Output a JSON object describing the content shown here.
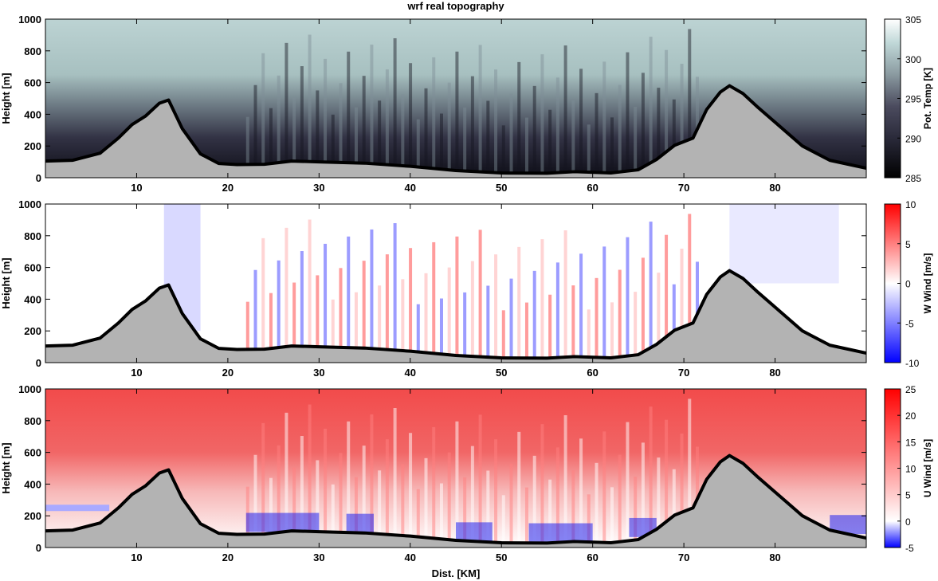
{
  "figure": {
    "title": "wrf real topography"
  },
  "chart_data": [
    {
      "type": "heatmap",
      "field": "potential temperature",
      "title": "wrf real topography",
      "xlabel": "",
      "ylabel": "Height [m]",
      "xlim": [
        0,
        90
      ],
      "ylim": [
        0,
        1000
      ],
      "xticks": [
        10,
        20,
        30,
        40,
        50,
        60,
        70,
        80
      ],
      "yticks": [
        0,
        200,
        400,
        600,
        800,
        1000
      ],
      "colorbar": {
        "label": "Pot. Temp [K]",
        "range": [
          285,
          305
        ],
        "ticks": [
          285,
          290,
          295,
          300,
          305
        ],
        "colormap": "bone",
        "colors": [
          "#000000",
          "#4b4b5e",
          "#8a9aa0",
          "#c0d8d8",
          "#ffffff"
        ]
      }
    },
    {
      "type": "heatmap",
      "field": "vertical wind",
      "xlabel": "",
      "ylabel": "Height [m]",
      "xlim": [
        0,
        90
      ],
      "ylim": [
        0,
        1000
      ],
      "xticks": [
        10,
        20,
        30,
        40,
        50,
        60,
        70,
        80
      ],
      "yticks": [
        0,
        200,
        400,
        600,
        800,
        1000
      ],
      "colorbar": {
        "label": "W Wind [m/s]",
        "range": [
          -10,
          10
        ],
        "ticks": [
          -10,
          -5,
          0,
          5,
          10
        ],
        "colormap": "blue-white-red",
        "colors": [
          "#0000ff",
          "#ffffff",
          "#ff0000"
        ]
      }
    },
    {
      "type": "heatmap",
      "field": "horizontal wind",
      "xlabel": "Dist. [KM]",
      "ylabel": "Height [m]",
      "xlim": [
        0,
        90
      ],
      "ylim": [
        0,
        1000
      ],
      "xticks": [
        10,
        20,
        30,
        40,
        50,
        60,
        70,
        80
      ],
      "yticks": [
        0,
        200,
        400,
        600,
        800,
        1000
      ],
      "colorbar": {
        "label": "U Wind [m/s]",
        "range": [
          -5,
          25
        ],
        "ticks": [
          -5,
          0,
          5,
          10,
          15,
          20,
          25
        ],
        "colormap": "blue-white-red",
        "colors": [
          "#0000ff",
          "#ffffff",
          "#ff0000"
        ]
      }
    }
  ],
  "terrain": {
    "x": [
      0,
      3,
      6,
      8,
      9.5,
      11,
      12.5,
      13.5,
      15,
      17,
      19,
      21,
      24,
      27,
      30,
      35,
      40,
      45,
      50,
      55,
      58,
      62,
      65,
      67,
      69,
      71,
      72.5,
      74,
      75,
      76.5,
      78,
      80,
      83,
      86,
      90
    ],
    "y": [
      105,
      110,
      155,
      250,
      335,
      390,
      470,
      490,
      310,
      150,
      90,
      83,
      85,
      105,
      100,
      92,
      72,
      45,
      30,
      28,
      38,
      30,
      50,
      115,
      205,
      250,
      430,
      540,
      580,
      530,
      450,
      350,
      200,
      110,
      60
    ]
  }
}
